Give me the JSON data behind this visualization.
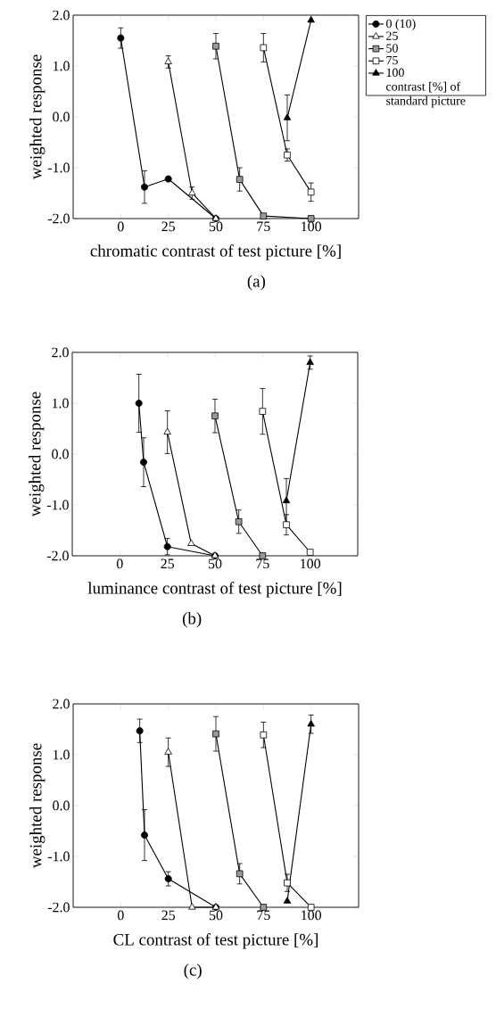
{
  "chart_data": [
    {
      "type": "line",
      "xlabel": "chromatic contrast of test picture [%]",
      "ylabel": "weighted response",
      "annotations": [
        "(a)"
      ],
      "xlim": [
        -25,
        125
      ],
      "ylim": [
        -2,
        2
      ],
      "xticks": [
        0,
        25,
        50,
        75,
        100
      ],
      "yticks": [
        {
          "value": -2,
          "label": "-2.0"
        },
        {
          "value": -1,
          "label": "-1.0"
        },
        {
          "value": 0,
          "label": "0.0"
        },
        {
          "value": 1,
          "label": "1.0"
        },
        {
          "value": 2,
          "label": "2.0"
        }
      ],
      "legend": "right",
      "legend_title": "contrast [%] of standard picture",
      "series": [
        {
          "name": "0 (10)",
          "color": "#000000",
          "marker": "circle",
          "x": [
            0,
            12.5,
            25,
            50
          ],
          "values": [
            1.55,
            -1.38,
            -1.22,
            -2.0
          ],
          "errors": [
            0.2,
            0.32,
            null,
            null
          ]
        },
        {
          "name": "25",
          "color": "#ffffff",
          "marker": "triangle",
          "x": [
            25,
            37.5,
            50
          ],
          "values": [
            1.08,
            -1.5,
            -2.0
          ],
          "errors": [
            0.12,
            0.12,
            null
          ]
        },
        {
          "name": "50",
          "color": "#999999",
          "marker": "square",
          "x": [
            50,
            62.5,
            75,
            100
          ],
          "values": [
            1.39,
            -1.23,
            -1.95,
            -2.0
          ],
          "errors": [
            0.25,
            0.23,
            null,
            null
          ]
        },
        {
          "name": "75",
          "color": "#ffffff",
          "marker": "square",
          "x": [
            75,
            87.5,
            100
          ],
          "values": [
            1.36,
            -0.75,
            -1.48
          ],
          "errors": [
            0.28,
            0.12,
            0.18
          ]
        },
        {
          "name": "100",
          "color": "#000000",
          "marker": "triangle",
          "x": [
            87.5,
            100
          ],
          "values": [
            -0.02,
            1.9
          ],
          "errors": [
            0.45,
            null
          ]
        }
      ]
    },
    {
      "type": "line",
      "xlabel": "luminance contrast of test picture [%]",
      "ylabel": "weighted response",
      "annotations": [
        "(b)"
      ],
      "xlim": [
        -25,
        125
      ],
      "ylim": [
        -2,
        2
      ],
      "xticks": [
        0,
        25,
        50,
        75,
        100
      ],
      "yticks": [
        {
          "value": -2,
          "label": "-2.0"
        },
        {
          "value": -1,
          "label": "-1.0"
        },
        {
          "value": 0,
          "label": "0.0"
        },
        {
          "value": 1,
          "label": "1.0"
        },
        {
          "value": 2,
          "label": "2.0"
        }
      ],
      "series": [
        {
          "color": "#000000",
          "marker": "circle",
          "x": [
            10,
            12.5,
            25,
            50
          ],
          "values": [
            1.0,
            -0.16,
            -1.82,
            -2.0
          ],
          "errors": [
            0.57,
            0.48,
            0.16,
            null
          ]
        },
        {
          "color": "#ffffff",
          "marker": "triangle",
          "x": [
            25,
            37.5,
            50
          ],
          "values": [
            0.43,
            -1.76,
            -2.0
          ],
          "errors": [
            0.42,
            null,
            null
          ]
        },
        {
          "color": "#999999",
          "marker": "square",
          "x": [
            50,
            62.5,
            75
          ],
          "values": [
            0.75,
            -1.33,
            -2.0
          ],
          "errors": [
            0.33,
            0.23,
            null
          ]
        },
        {
          "color": "#ffffff",
          "marker": "square",
          "x": [
            75,
            87.5,
            100
          ],
          "values": [
            0.84,
            -1.39,
            -1.93
          ],
          "errors": [
            0.45,
            0.2,
            null
          ]
        },
        {
          "color": "#000000",
          "marker": "triangle",
          "x": [
            87.5,
            100
          ],
          "values": [
            -0.92,
            1.8
          ],
          "errors": [
            0.44,
            0.13
          ]
        }
      ]
    },
    {
      "type": "line",
      "xlabel": "CL contrast of test picture [%]",
      "ylabel": "weighted response",
      "annotations": [
        "(c)"
      ],
      "xlim": [
        -25,
        125
      ],
      "ylim": [
        -2,
        2
      ],
      "xticks": [
        0,
        25,
        50,
        75,
        100
      ],
      "yticks": [
        {
          "value": -2,
          "label": "-2.0"
        },
        {
          "value": -1,
          "label": "-1.0"
        },
        {
          "value": 0,
          "label": "0.0"
        },
        {
          "value": 1,
          "label": "1.0"
        },
        {
          "value": 2,
          "label": "2.0"
        }
      ],
      "series": [
        {
          "color": "#000000",
          "marker": "circle",
          "x": [
            10,
            12.5,
            25,
            50
          ],
          "values": [
            1.47,
            -0.58,
            -1.44,
            -2.0
          ],
          "errors": [
            0.23,
            0.5,
            0.14,
            null
          ]
        },
        {
          "color": "#ffffff",
          "marker": "triangle",
          "x": [
            25,
            37.5,
            50
          ],
          "values": [
            1.05,
            -2.0,
            -2.0
          ],
          "errors": [
            0.28,
            null,
            null
          ]
        },
        {
          "color": "#999999",
          "marker": "square",
          "x": [
            50,
            62.5,
            75
          ],
          "values": [
            1.41,
            -1.34,
            -2.0
          ],
          "errors": [
            0.34,
            0.2,
            null
          ]
        },
        {
          "color": "#ffffff",
          "marker": "square",
          "x": [
            75,
            87.5,
            100
          ],
          "values": [
            1.39,
            -1.52,
            -2.0
          ],
          "errors": [
            0.25,
            0.17,
            null
          ]
        },
        {
          "color": "#000000",
          "marker": "triangle",
          "x": [
            87.5,
            100
          ],
          "values": [
            -1.88,
            1.6
          ],
          "errors": [
            null,
            0.18
          ]
        }
      ]
    }
  ]
}
